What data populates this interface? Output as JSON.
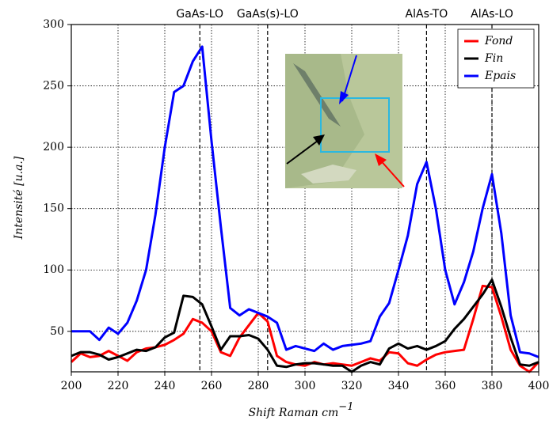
{
  "chart_data": {
    "type": "line",
    "x_label": "Shift Raman cm",
    "x_label_superscript": "−1",
    "y_label": "Intensité [u.a.]",
    "x": [
      200,
      204,
      208,
      212,
      216,
      220,
      224,
      228,
      232,
      236,
      240,
      244,
      248,
      252,
      256,
      260,
      264,
      268,
      272,
      276,
      280,
      284,
      288,
      292,
      296,
      300,
      304,
      308,
      312,
      316,
      320,
      324,
      328,
      332,
      336,
      340,
      344,
      348,
      352,
      356,
      360,
      364,
      368,
      372,
      376,
      380,
      384,
      388,
      392,
      396,
      400
    ],
    "series": [
      {
        "name": "Fond",
        "color": "#ff0000",
        "values": [
          25,
          32,
          29,
          30,
          34,
          30,
          26,
          33,
          36,
          37,
          39,
          43,
          48,
          60,
          57,
          50,
          33,
          30,
          45,
          55,
          65,
          58,
          30,
          25,
          23,
          22,
          25,
          23,
          24,
          23,
          22,
          25,
          28,
          26,
          33,
          32,
          24,
          22,
          27,
          31,
          33,
          34,
          35,
          60,
          87,
          86,
          62,
          35,
          22,
          17,
          25
        ]
      },
      {
        "name": "Fin",
        "color": "#000000",
        "values": [
          30,
          33,
          33,
          31,
          27,
          29,
          32,
          35,
          34,
          37,
          45,
          49,
          79,
          78,
          72,
          54,
          35,
          46,
          46,
          47,
          44,
          35,
          22,
          21,
          23,
          24,
          24,
          23,
          22,
          22,
          17,
          22,
          25,
          23,
          36,
          40,
          36,
          38,
          35,
          38,
          42,
          52,
          60,
          70,
          80,
          92,
          70,
          45,
          23,
          22,
          25
        ]
      },
      {
        "name": "Epais",
        "color": "#0000ff",
        "values": [
          50,
          50,
          50,
          43,
          53,
          48,
          57,
          75,
          100,
          145,
          200,
          245,
          250,
          270,
          282,
          205,
          135,
          69,
          63,
          68,
          65,
          62,
          57,
          35,
          38,
          36,
          34,
          40,
          35,
          38,
          39,
          40,
          42,
          62,
          73,
          100,
          128,
          170,
          188,
          150,
          100,
          72,
          90,
          115,
          150,
          178,
          130,
          63,
          33,
          32,
          29
        ]
      }
    ],
    "peak_lines": [
      {
        "label": "GaAs-LO",
        "x": 255
      },
      {
        "label": "GaAs(s)-LO",
        "x": 284
      },
      {
        "label": "AlAs-TO",
        "x": 352
      },
      {
        "label": "AlAs-LO",
        "x": 380
      }
    ],
    "xlim": [
      200,
      400
    ],
    "ylim": [
      17,
      300
    ],
    "xticks": [
      200,
      220,
      240,
      260,
      280,
      300,
      320,
      340,
      360,
      380,
      400
    ],
    "yticks": [
      50,
      100,
      150,
      200,
      250,
      300
    ],
    "grid": true,
    "legend": "upper right"
  }
}
